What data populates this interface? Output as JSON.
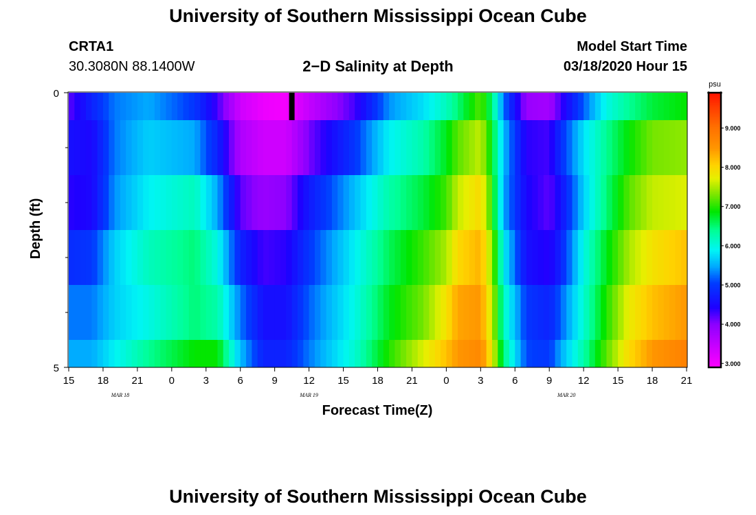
{
  "header": {
    "title": "University of Southern Mississippi Ocean Cube",
    "station_id": "CRTA1",
    "station_coords": "30.3080N 88.1400W",
    "plot_title": "2−D Salinity at Depth",
    "model_start_label": "Model Start Time",
    "model_start_value": "03/18/2020 Hour 15"
  },
  "footer": {
    "title": "University of Southern Mississippi Ocean Cube"
  },
  "chart_data": {
    "type": "heatmap",
    "title": "2−D Salinity at Depth",
    "xlabel": "Forecast Time(Z)",
    "ylabel": "Depth (ft)",
    "x_tick_labels": [
      "15",
      "18",
      "21",
      "0",
      "3",
      "6",
      "9",
      "12",
      "15",
      "18",
      "21",
      "0",
      "3",
      "6",
      "9",
      "12",
      "15",
      "18",
      "21"
    ],
    "x_date_labels": [
      {
        "text": "MAR 18",
        "tick_index": 1.5
      },
      {
        "text": "MAR 19",
        "tick_index": 7
      },
      {
        "text": "MAR 20",
        "tick_index": 14.5
      }
    ],
    "x_hours_from_start": [
      0,
      54
    ],
    "y_range": [
      0,
      5
    ],
    "y_tick_labels": [
      "0",
      "5"
    ],
    "y_minor_ticks": [
      1,
      2,
      3,
      4
    ],
    "depth_layers": [
      0.5,
      1.5,
      2.5,
      3.5,
      4.5
    ],
    "colorbar": {
      "unit": "psu",
      "range": [
        2.9,
        9.9
      ],
      "tick_labels": [
        "3.000",
        "4.000",
        "5.000",
        "6.000",
        "7.000",
        "8.000",
        "9.000"
      ],
      "tick_values": [
        3,
        4,
        5,
        6,
        7,
        8,
        9
      ]
    },
    "salinity_keyframes": {
      "hours": [
        0,
        2,
        4,
        7,
        11,
        13,
        15,
        17,
        19,
        21,
        25,
        28,
        31,
        33,
        34,
        36,
        37,
        38,
        40,
        42,
        43,
        45,
        47,
        49,
        51,
        54
      ],
      "layer_0": [
        4.2,
        4.8,
        5.3,
        5.5,
        5.0,
        4.3,
        3.4,
        3.1,
        3.0,
        3.5,
        4.3,
        5.4,
        5.8,
        6.2,
        6.5,
        7.2,
        6.5,
        5.3,
        3.9,
        3.8,
        4.3,
        5.2,
        6.0,
        6.4,
        6.7,
        6.9
      ],
      "layer_1": [
        4.6,
        4.5,
        5.3,
        5.7,
        5.5,
        4.8,
        3.7,
        3.4,
        3.4,
        4.1,
        5.0,
        5.9,
        6.3,
        6.8,
        7.2,
        7.6,
        6.8,
        5.6,
        4.4,
        4.3,
        4.9,
        5.8,
        6.4,
        6.9,
        7.3,
        7.4
      ],
      "layer_2": [
        4.4,
        4.5,
        5.4,
        5.9,
        6.2,
        5.5,
        4.2,
        3.9,
        4.0,
        4.7,
        5.6,
        6.3,
        6.7,
        7.1,
        7.6,
        8.0,
        7.0,
        5.5,
        4.5,
        4.2,
        4.6,
        5.7,
        6.5,
        7.2,
        7.6,
        7.7
      ],
      "layer_3": [
        4.9,
        5.0,
        5.7,
        6.2,
        6.5,
        6.0,
        4.8,
        4.3,
        4.4,
        5.0,
        5.9,
        6.6,
        7.1,
        7.5,
        8.0,
        8.3,
        7.4,
        5.9,
        4.6,
        4.4,
        4.8,
        6.0,
        6.8,
        7.5,
        7.9,
        8.2
      ],
      "layer_4": [
        5.3,
        5.3,
        5.7,
        6.0,
        6.5,
        6.3,
        5.3,
        4.6,
        4.6,
        5.2,
        6.0,
        6.8,
        7.3,
        7.9,
        8.4,
        8.5,
        7.6,
        6.2,
        5.0,
        4.8,
        5.2,
        6.1,
        7.0,
        7.8,
        8.2,
        8.5
      ],
      "layer_5": [
        5.5,
        5.5,
        5.9,
        6.4,
        6.9,
        6.9,
        5.6,
        4.8,
        4.8,
        5.3,
        6.1,
        7.0,
        7.7,
        8.2,
        8.5,
        8.7,
        7.8,
        6.5,
        5.1,
        5.0,
        5.5,
        6.3,
        7.2,
        8.0,
        8.5,
        8.8
      ]
    },
    "marker": {
      "hour": 19.5,
      "layer": 0,
      "color": "#000000"
    },
    "grid": false
  },
  "colors": {
    "background": "#ffffff",
    "axes": "#000000"
  }
}
